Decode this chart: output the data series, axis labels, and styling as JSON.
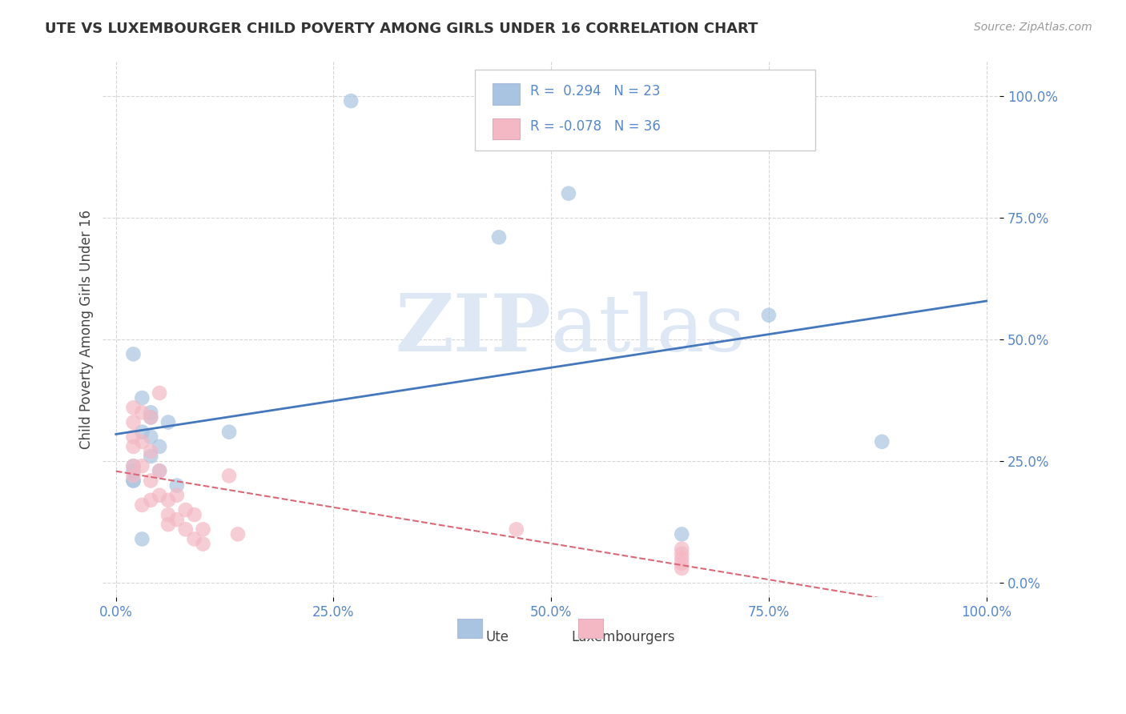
{
  "title": "UTE VS LUXEMBOURGER CHILD POVERTY AMONG GIRLS UNDER 16 CORRELATION CHART",
  "source": "Source: ZipAtlas.com",
  "ylabel": "Child Poverty Among Girls Under 16",
  "ute_r": 0.294,
  "ute_n": 23,
  "lux_r": -0.078,
  "lux_n": 36,
  "ute_color": "#a8c4e0",
  "lux_color": "#f4b8c4",
  "ute_line_color": "#4477bb",
  "lux_line_color": "#dd6677",
  "background_color": "#ffffff",
  "grid_color": "#cccccc",
  "title_color": "#333333",
  "axis_label_color": "#444444",
  "tick_color": "#5588cc",
  "legend_label_ute": "Ute",
  "legend_label_lux": "Luxembourgers",
  "xlim": [
    -0.015,
    1.015
  ],
  "ylim": [
    -0.03,
    1.07
  ],
  "xticks": [
    0.0,
    0.25,
    0.5,
    0.75,
    1.0
  ],
  "yticks": [
    0.0,
    0.25,
    0.5,
    0.75,
    1.0
  ],
  "ute_x": [
    0.27,
    0.52,
    0.44,
    0.75,
    0.88,
    0.02,
    0.04,
    0.03,
    0.04,
    0.06,
    0.04,
    0.05,
    0.13,
    0.02,
    0.02,
    0.02,
    0.02,
    0.65,
    0.03,
    0.04,
    0.05,
    0.07,
    0.03
  ],
  "ute_y": [
    0.99,
    0.8,
    0.71,
    0.55,
    0.29,
    0.47,
    0.34,
    0.31,
    0.35,
    0.33,
    0.3,
    0.28,
    0.31,
    0.24,
    0.23,
    0.21,
    0.21,
    0.1,
    0.38,
    0.26,
    0.23,
    0.2,
    0.09
  ],
  "lux_x": [
    0.02,
    0.02,
    0.02,
    0.02,
    0.02,
    0.02,
    0.03,
    0.03,
    0.03,
    0.03,
    0.04,
    0.04,
    0.04,
    0.04,
    0.05,
    0.05,
    0.05,
    0.06,
    0.06,
    0.06,
    0.07,
    0.07,
    0.08,
    0.08,
    0.09,
    0.09,
    0.1,
    0.1,
    0.13,
    0.14,
    0.46,
    0.65,
    0.65,
    0.65,
    0.65,
    0.65
  ],
  "lux_y": [
    0.36,
    0.33,
    0.3,
    0.28,
    0.24,
    0.22,
    0.35,
    0.29,
    0.24,
    0.16,
    0.34,
    0.27,
    0.21,
    0.17,
    0.39,
    0.23,
    0.18,
    0.17,
    0.14,
    0.12,
    0.18,
    0.13,
    0.15,
    0.11,
    0.14,
    0.09,
    0.11,
    0.08,
    0.22,
    0.1,
    0.11,
    0.07,
    0.06,
    0.05,
    0.04,
    0.03
  ],
  "watermark_top": "ZIP",
  "watermark_bot": "atlas",
  "watermark_color": "#dde8f4"
}
